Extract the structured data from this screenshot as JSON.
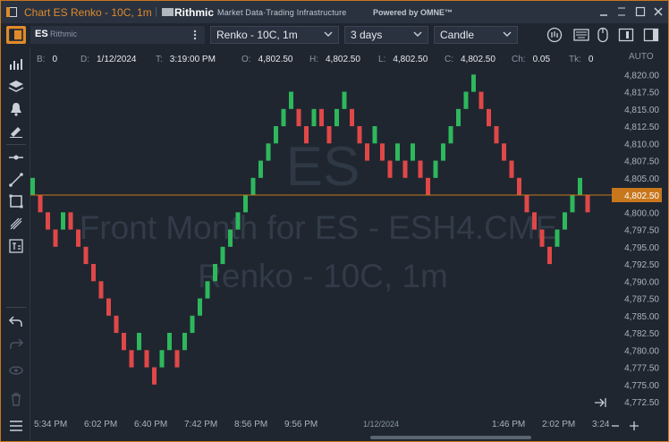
{
  "window": {
    "title": "Chart ES Renko - 10C, 1m",
    "brand": "Rithmic",
    "tagline": "Market Data·Trading Infrastructure",
    "powered": "Powered by OMNE™"
  },
  "toolbar": {
    "symbol": "ES",
    "feed": "Rithmic",
    "chart_type": "Renko - 10C, 1m",
    "period": "3 days",
    "style": "Candle"
  },
  "info": [
    {
      "key": "B:",
      "value": "0"
    },
    {
      "key": "D:",
      "value": "1/12/2024"
    },
    {
      "key": "T:",
      "value": "3:19:00 PM"
    },
    {
      "key": "O:",
      "value": "4,802.50"
    },
    {
      "key": "H:",
      "value": "4,802.50"
    },
    {
      "key": "L:",
      "value": "4,802.50"
    },
    {
      "key": "C:",
      "value": "4,802.50"
    },
    {
      "key": "Ch:",
      "value": "0.05"
    },
    {
      "key": "Tk:",
      "value": "0"
    }
  ],
  "scale_mode": "AUTO",
  "watermark": {
    "symbol": "ES",
    "line1": "Front Month for ES - ESH4.CME",
    "line2": "Renko - 10C, 1m"
  },
  "price_axis": [
    "4,820.00",
    "4,817.50",
    "4,815.00",
    "4,812.50",
    "4,810.00",
    "4,807.50",
    "4,805.00",
    "4,802.50",
    "4,800.00",
    "4,797.50",
    "4,795.00",
    "4,792.50",
    "4,790.00",
    "4,787.50",
    "4,785.00",
    "4,782.50",
    "4,780.00",
    "4,777.50",
    "4,775.00",
    "4,772.50"
  ],
  "last_price": "4,802.50",
  "time_axis": [
    "5:34 PM",
    "6:02 PM",
    "6:40 PM",
    "7:42 PM",
    "8:56 PM",
    "9:56 PM",
    "1/12/2024",
    "1:46 PM",
    "2:02 PM",
    "3:24"
  ],
  "colors": {
    "up": "#2eb85c",
    "down": "#e04848",
    "accent": "#e08a2a",
    "background": "#1f2630"
  },
  "chart_data": {
    "type": "renko",
    "brick_size": 2.5,
    "y_unit": "price",
    "ylim": [
      4771.0,
      4822.0
    ],
    "bricks": [
      {
        "open": 4802.5,
        "close": 4805.0,
        "dir": "up"
      },
      {
        "open": 4802.5,
        "close": 4800.0,
        "dir": "down"
      },
      {
        "open": 4800.0,
        "close": 4797.5,
        "dir": "down"
      },
      {
        "open": 4797.5,
        "close": 4795.0,
        "dir": "down"
      },
      {
        "open": 4797.5,
        "close": 4800.0,
        "dir": "up"
      },
      {
        "open": 4800.0,
        "close": 4797.5,
        "dir": "down"
      },
      {
        "open": 4797.5,
        "close": 4795.0,
        "dir": "down"
      },
      {
        "open": 4795.0,
        "close": 4792.5,
        "dir": "down"
      },
      {
        "open": 4792.5,
        "close": 4790.0,
        "dir": "down"
      },
      {
        "open": 4790.0,
        "close": 4787.5,
        "dir": "down"
      },
      {
        "open": 4787.5,
        "close": 4785.0,
        "dir": "down"
      },
      {
        "open": 4785.0,
        "close": 4782.5,
        "dir": "down"
      },
      {
        "open": 4782.5,
        "close": 4780.0,
        "dir": "down"
      },
      {
        "open": 4780.0,
        "close": 4777.5,
        "dir": "down"
      },
      {
        "open": 4780.0,
        "close": 4782.5,
        "dir": "up"
      },
      {
        "open": 4780.0,
        "close": 4777.5,
        "dir": "down"
      },
      {
        "open": 4777.5,
        "close": 4775.0,
        "dir": "down"
      },
      {
        "open": 4777.5,
        "close": 4780.0,
        "dir": "up"
      },
      {
        "open": 4780.0,
        "close": 4782.5,
        "dir": "up"
      },
      {
        "open": 4780.0,
        "close": 4777.5,
        "dir": "down"
      },
      {
        "open": 4780.0,
        "close": 4782.5,
        "dir": "up"
      },
      {
        "open": 4782.5,
        "close": 4785.0,
        "dir": "up"
      },
      {
        "open": 4785.0,
        "close": 4787.5,
        "dir": "up"
      },
      {
        "open": 4787.5,
        "close": 4790.0,
        "dir": "up"
      },
      {
        "open": 4790.0,
        "close": 4792.5,
        "dir": "up"
      },
      {
        "open": 4792.5,
        "close": 4795.0,
        "dir": "up"
      },
      {
        "open": 4795.0,
        "close": 4797.5,
        "dir": "up"
      },
      {
        "open": 4797.5,
        "close": 4800.0,
        "dir": "up"
      },
      {
        "open": 4800.0,
        "close": 4802.5,
        "dir": "up"
      },
      {
        "open": 4802.5,
        "close": 4805.0,
        "dir": "up"
      },
      {
        "open": 4805.0,
        "close": 4807.5,
        "dir": "up"
      },
      {
        "open": 4807.5,
        "close": 4810.0,
        "dir": "up"
      },
      {
        "open": 4810.0,
        "close": 4812.5,
        "dir": "up"
      },
      {
        "open": 4812.5,
        "close": 4815.0,
        "dir": "up"
      },
      {
        "open": 4815.0,
        "close": 4817.5,
        "dir": "up"
      },
      {
        "open": 4815.0,
        "close": 4812.5,
        "dir": "down"
      },
      {
        "open": 4812.5,
        "close": 4810.0,
        "dir": "down"
      },
      {
        "open": 4812.5,
        "close": 4815.0,
        "dir": "up"
      },
      {
        "open": 4815.0,
        "close": 4812.5,
        "dir": "down"
      },
      {
        "open": 4812.5,
        "close": 4810.0,
        "dir": "down"
      },
      {
        "open": 4812.5,
        "close": 4815.0,
        "dir": "up"
      },
      {
        "open": 4815.0,
        "close": 4817.5,
        "dir": "up"
      },
      {
        "open": 4815.0,
        "close": 4812.5,
        "dir": "down"
      },
      {
        "open": 4812.5,
        "close": 4810.0,
        "dir": "down"
      },
      {
        "open": 4810.0,
        "close": 4807.5,
        "dir": "down"
      },
      {
        "open": 4810.0,
        "close": 4812.5,
        "dir": "up"
      },
      {
        "open": 4810.0,
        "close": 4807.5,
        "dir": "down"
      },
      {
        "open": 4807.5,
        "close": 4805.0,
        "dir": "down"
      },
      {
        "open": 4807.5,
        "close": 4810.0,
        "dir": "up"
      },
      {
        "open": 4807.5,
        "close": 4805.0,
        "dir": "down"
      },
      {
        "open": 4807.5,
        "close": 4810.0,
        "dir": "up"
      },
      {
        "open": 4807.5,
        "close": 4805.0,
        "dir": "down"
      },
      {
        "open": 4805.0,
        "close": 4802.5,
        "dir": "down"
      },
      {
        "open": 4805.0,
        "close": 4807.5,
        "dir": "up"
      },
      {
        "open": 4807.5,
        "close": 4810.0,
        "dir": "up"
      },
      {
        "open": 4810.0,
        "close": 4812.5,
        "dir": "up"
      },
      {
        "open": 4812.5,
        "close": 4815.0,
        "dir": "up"
      },
      {
        "open": 4815.0,
        "close": 4817.5,
        "dir": "up"
      },
      {
        "open": 4817.5,
        "close": 4820.0,
        "dir": "up"
      },
      {
        "open": 4817.5,
        "close": 4815.0,
        "dir": "down"
      },
      {
        "open": 4815.0,
        "close": 4812.5,
        "dir": "down"
      },
      {
        "open": 4812.5,
        "close": 4810.0,
        "dir": "down"
      },
      {
        "open": 4810.0,
        "close": 4807.5,
        "dir": "down"
      },
      {
        "open": 4807.5,
        "close": 4805.0,
        "dir": "down"
      },
      {
        "open": 4805.0,
        "close": 4802.5,
        "dir": "down"
      },
      {
        "open": 4802.5,
        "close": 4800.0,
        "dir": "down"
      },
      {
        "open": 4800.0,
        "close": 4797.5,
        "dir": "down"
      },
      {
        "open": 4797.5,
        "close": 4795.0,
        "dir": "down"
      },
      {
        "open": 4795.0,
        "close": 4792.5,
        "dir": "down"
      },
      {
        "open": 4795.0,
        "close": 4797.5,
        "dir": "up"
      },
      {
        "open": 4797.5,
        "close": 4800.0,
        "dir": "up"
      },
      {
        "open": 4800.0,
        "close": 4802.5,
        "dir": "up"
      },
      {
        "open": 4802.5,
        "close": 4805.0,
        "dir": "up"
      },
      {
        "open": 4802.5,
        "close": 4800.0,
        "dir": "down"
      }
    ]
  }
}
